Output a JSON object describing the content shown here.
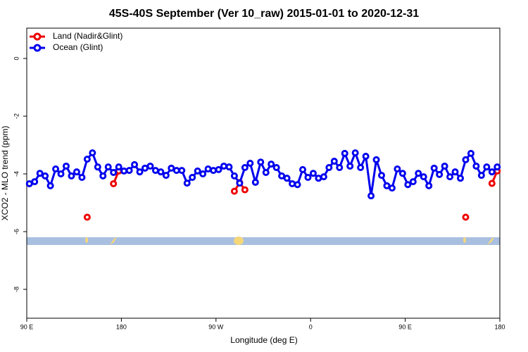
{
  "chart_data": {
    "type": "line",
    "title": "45S-40S September (Ver 10_raw)   2015-01-01 to 2020-12-31",
    "x_label": "Longitude (deg E)",
    "y_label": "XCO2 - MLO trend (ppm)",
    "x": [
      92.5,
      97.5,
      102.5,
      107.5,
      112.5,
      117.5,
      122.5,
      127.5,
      132.5,
      137.5,
      142.5,
      147.5,
      152.5,
      157.5,
      162.5,
      167.5,
      172.5,
      177.5,
      182.5,
      187.5,
      192.5,
      197.5,
      202.5,
      207.5,
      212.5,
      217.5,
      222.5,
      227.5,
      232.5,
      237.5,
      242.5,
      247.5,
      252.5,
      257.5,
      262.5,
      267.5,
      272.5,
      277.5,
      282.5,
      287.5,
      292.5,
      297.5,
      302.5,
      307.5,
      312.5,
      317.5,
      322.5,
      327.5,
      332.5,
      337.5,
      342.5,
      347.5,
      352.5,
      357.5,
      362.5,
      367.5,
      372.5,
      377.5,
      382.5,
      387.5,
      392.5,
      397.5,
      402.5,
      407.5,
      412.5,
      417.5,
      422.5,
      427.5,
      432.5,
      437.5,
      442.5,
      447.5,
      452.5,
      457.5,
      462.5,
      467.5,
      472.5,
      477.5,
      482.5,
      487.5,
      492.5,
      497.5,
      502.5,
      507.5,
      512.5,
      517.5,
      522.5,
      527.5,
      532.5,
      537.5
    ],
    "series": [
      {
        "name": "Land (Nadir&Glint)",
        "color": "#ee0000",
        "values": [
          null,
          null,
          null,
          null,
          null,
          null,
          null,
          null,
          null,
          null,
          null,
          -5.5,
          null,
          null,
          null,
          null,
          -4.34,
          -3.9,
          null,
          null,
          null,
          null,
          null,
          null,
          null,
          null,
          null,
          null,
          null,
          null,
          null,
          null,
          null,
          null,
          null,
          null,
          null,
          null,
          null,
          -4.6,
          -4.3,
          -4.55,
          null,
          null,
          null,
          null,
          null,
          null,
          null,
          null,
          null,
          null,
          null,
          null,
          null,
          null,
          null,
          null,
          null,
          null,
          null,
          null,
          null,
          null,
          null,
          null,
          null,
          null,
          null,
          null,
          null,
          null,
          null,
          null,
          null,
          null,
          null,
          null,
          null,
          null,
          null,
          null,
          null,
          -5.5,
          null,
          null,
          null,
          null,
          -4.33,
          -3.9
        ]
      },
      {
        "name": "Ocean (Glint)",
        "color": "#0000ee",
        "values": [
          -4.34,
          -4.27,
          -3.98,
          -4.07,
          -4.41,
          -3.83,
          -4.0,
          -3.73,
          -4.07,
          -3.93,
          -4.12,
          -3.49,
          -3.27,
          -3.76,
          -4.07,
          -3.76,
          -3.95,
          -3.76,
          -3.9,
          -3.88,
          -3.68,
          -3.93,
          -3.8,
          -3.73,
          -3.88,
          -3.93,
          -4.05,
          -3.8,
          -3.88,
          -3.88,
          -4.32,
          -4.12,
          -3.9,
          -4.0,
          -3.83,
          -3.88,
          -3.85,
          -3.73,
          -3.76,
          -4.07,
          -4.32,
          -3.78,
          -3.63,
          -4.29,
          -3.59,
          -3.95,
          -3.66,
          -3.78,
          -4.07,
          -4.15,
          -4.34,
          -4.37,
          -3.85,
          -4.12,
          -3.98,
          -4.15,
          -4.1,
          -3.78,
          -3.56,
          -3.78,
          -3.29,
          -3.73,
          -3.27,
          -3.78,
          -3.39,
          -4.76,
          -3.51,
          -4.05,
          -4.41,
          -4.49,
          -3.83,
          -3.98,
          -4.37,
          -4.27,
          -3.98,
          -4.1,
          -4.41,
          -3.8,
          -4.02,
          -3.73,
          -4.1,
          -3.93,
          -4.15,
          -3.51,
          -3.29,
          -3.73,
          -4.05,
          -3.76,
          -3.93,
          -3.76
        ]
      }
    ],
    "xlim": [
      90,
      540
    ],
    "xticks": [
      {
        "value": 90,
        "label": "90 E"
      },
      180,
      {
        "value": 270,
        "label": "90 W"
      },
      {
        "value": 360,
        "label": "0"
      },
      {
        "value": 450,
        "label": "90 E"
      },
      {
        "value": 540,
        "label": "180"
      }
    ],
    "ylim": [
      -9,
      1.05
    ],
    "yticks": [
      0,
      -2,
      -4,
      -6,
      -8
    ],
    "legend": "top-left"
  }
}
